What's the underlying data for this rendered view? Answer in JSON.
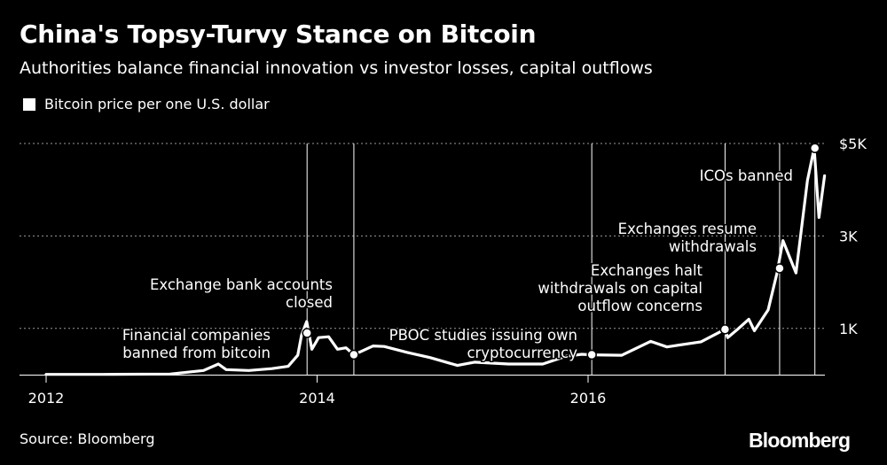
{
  "header": {
    "title": "China's Topsy-Turvy Stance on Bitcoin",
    "subtitle": "Authorities balance financial innovation vs investor losses, capital outflows"
  },
  "legend": {
    "label": "Bitcoin price per one U.S. dollar"
  },
  "footer": {
    "source": "Source: Bloomberg",
    "logo": "Bloomberg"
  },
  "colors": {
    "background": "#000000",
    "line": "#ffffff",
    "gridline": "#9a9a9a"
  },
  "chart_data": {
    "type": "line",
    "title": "China's Topsy-Turvy Stance on Bitcoin",
    "subtitle": "Authorities balance financial innovation vs investor losses, capital outflows",
    "xlabel": "",
    "ylabel": "",
    "x_ticks": [
      "2012",
      "2014",
      "2016"
    ],
    "y_ticks": [
      "1K",
      "3K",
      "$5K"
    ],
    "y_tick_values": [
      1000,
      3000,
      5000
    ],
    "ylim": [
      0,
      5000
    ],
    "xlim": [
      "2012-01-01",
      "2017-10-31"
    ],
    "grid": "horizontal dotted",
    "legend_position": "top-left",
    "series": [
      {
        "name": "Bitcoin price per one U.S. dollar",
        "points": [
          [
            "2012-01-01",
            5
          ],
          [
            "2012-06-01",
            6
          ],
          [
            "2012-12-01",
            13
          ],
          [
            "2013-03-01",
            90
          ],
          [
            "2013-04-10",
            230
          ],
          [
            "2013-05-01",
            110
          ],
          [
            "2013-07-01",
            90
          ],
          [
            "2013-09-01",
            130
          ],
          [
            "2013-10-15",
            180
          ],
          [
            "2013-11-10",
            420
          ],
          [
            "2013-11-20",
            850
          ],
          [
            "2013-12-04",
            1150
          ],
          [
            "2013-12-18",
            550
          ],
          [
            "2014-01-05",
            800
          ],
          [
            "2014-02-01",
            820
          ],
          [
            "2014-02-25",
            550
          ],
          [
            "2014-03-20",
            580
          ],
          [
            "2014-04-10",
            430
          ],
          [
            "2014-06-01",
            620
          ],
          [
            "2014-07-01",
            610
          ],
          [
            "2014-09-01",
            480
          ],
          [
            "2014-11-01",
            370
          ],
          [
            "2015-01-14",
            200
          ],
          [
            "2015-03-01",
            270
          ],
          [
            "2015-06-01",
            230
          ],
          [
            "2015-09-01",
            230
          ],
          [
            "2015-11-04",
            400
          ],
          [
            "2015-12-15",
            440
          ],
          [
            "2016-01-11",
            430
          ],
          [
            "2016-04-01",
            420
          ],
          [
            "2016-06-18",
            720
          ],
          [
            "2016-08-01",
            600
          ],
          [
            "2016-11-01",
            710
          ],
          [
            "2017-01-05",
            980
          ],
          [
            "2017-01-12",
            800
          ],
          [
            "2017-02-09",
            990
          ],
          [
            "2017-03-10",
            1200
          ],
          [
            "2017-03-25",
            950
          ],
          [
            "2017-05-01",
            1400
          ],
          [
            "2017-05-25",
            2200
          ],
          [
            "2017-06-10",
            2900
          ],
          [
            "2017-07-15",
            2200
          ],
          [
            "2017-08-15",
            4200
          ],
          [
            "2017-09-02",
            4900
          ],
          [
            "2017-09-15",
            3400
          ],
          [
            "2017-09-30",
            4300
          ]
        ]
      }
    ],
    "events": [
      {
        "date": "2013-12-05",
        "value": 900,
        "label": [
          "Financial companies",
          "banned from bitcoin"
        ]
      },
      {
        "date": "2014-04-10",
        "value": 430,
        "label": [
          "Exchange bank accounts",
          "closed"
        ]
      },
      {
        "date": "2016-01-11",
        "value": 430,
        "label": [
          "PBOC studies issuing own",
          "cryptocurrency"
        ]
      },
      {
        "date": "2017-01-05",
        "value": 980,
        "label": [
          "Exchanges halt",
          "withdrawals on capital",
          "outflow concerns"
        ]
      },
      {
        "date": "2017-06-01",
        "value": 2300,
        "label": [
          "Exchanges resume",
          "withdrawals"
        ]
      },
      {
        "date": "2017-09-04",
        "value": 4900,
        "label": [
          "ICOs banned"
        ]
      }
    ]
  }
}
